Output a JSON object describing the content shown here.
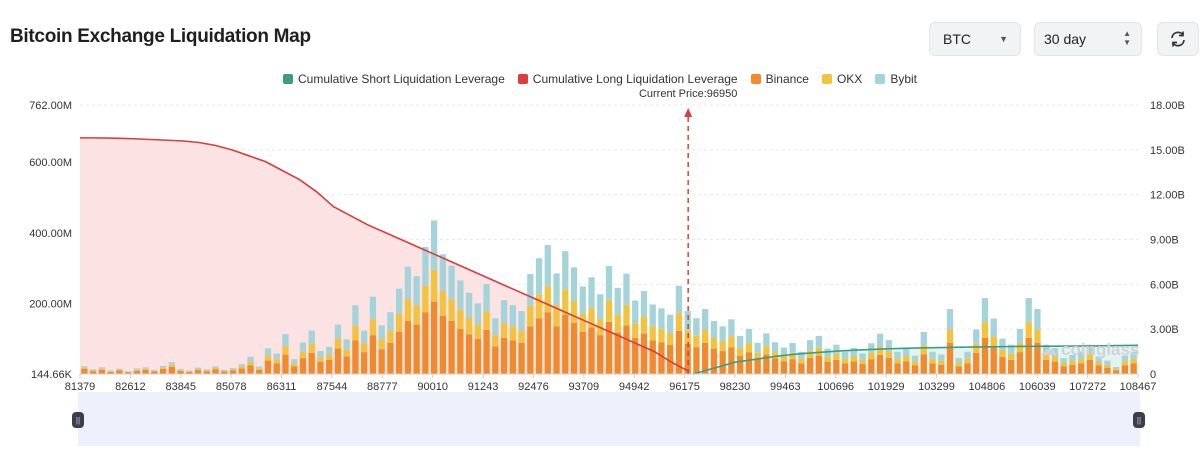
{
  "page": {
    "title": "Bitcoin Exchange Liquidation Map",
    "symbol_select": "BTC",
    "range_select": "30 day",
    "refresh_icon": "refresh-icon",
    "watermark": "coinglass"
  },
  "colors": {
    "short": "#3a9e85",
    "long": "#dc3c3c",
    "binance": "#f08a2c",
    "okx": "#f3c23f",
    "bybit": "#a4d4da",
    "long_fill": "#fbe3e3",
    "short_fill": "#e3f3ee"
  },
  "chart_data": {
    "type": "bar",
    "current_price_label": "Current Price:96950",
    "current_price": 96950,
    "legend": [
      "Cumulative Short Liquidation Leverage",
      "Cumulative Long Liquidation Leverage",
      "Binance",
      "OKX",
      "Bybit"
    ],
    "x_ticks": [
      "81379",
      "82612",
      "83845",
      "85078",
      "86311",
      "87544",
      "88777",
      "90010",
      "91243",
      "92476",
      "93709",
      "94942",
      "96175",
      "98230",
      "99463",
      "100696",
      "101929",
      "103299",
      "104806",
      "106039",
      "107272",
      "108467"
    ],
    "y_left_ticks": [
      "144.66K",
      "200.00M",
      "400.00M",
      "600.00M",
      "762.00M"
    ],
    "y_right_ticks": [
      "0",
      "3.00B",
      "6.00B",
      "9.00B",
      "12.00B",
      "15.00B",
      "18.00B"
    ],
    "ylim_left": [
      0,
      762
    ],
    "ylim_right": [
      0,
      18
    ],
    "bar_unit": "M",
    "x_range": [
      81379,
      108467
    ],
    "series_bars": [
      {
        "name": "Binance",
        "values": [
          15,
          8,
          12,
          6,
          10,
          5,
          9,
          12,
          7,
          14,
          20,
          9,
          6,
          11,
          8,
          13,
          7,
          10,
          16,
          25,
          12,
          38,
          30,
          55,
          22,
          45,
          60,
          35,
          40,
          72,
          50,
          95,
          62,
          110,
          70,
          88,
          120,
          150,
          140,
          175,
          205,
          165,
          150,
          128,
          112,
          100,
          125,
          78,
          102,
          95,
          88,
          135,
          158,
          175,
          135,
          168,
          145,
          120,
          132,
          110,
          148,
          118,
          138,
          102,
          115,
          95,
          90,
          82,
          122,
          86,
          76,
          88,
          72,
          65,
          75,
          52,
          62,
          42,
          55,
          44,
          36,
          42,
          30,
          46,
          52,
          35,
          40,
          30,
          36,
          28,
          42,
          54,
          46,
          30,
          36,
          25,
          56,
          30,
          26,
          88,
          22,
          30,
          60,
          102,
          75,
          48,
          40,
          62,
          102,
          88,
          40,
          35,
          22,
          26,
          30,
          40,
          24,
          18,
          10,
          25,
          30
        ]
      },
      {
        "name": "OKX",
        "values": [
          3,
          2,
          3,
          2,
          2,
          1,
          3,
          3,
          2,
          4,
          6,
          2,
          2,
          3,
          2,
          4,
          2,
          3,
          5,
          10,
          4,
          15,
          12,
          24,
          8,
          18,
          25,
          12,
          15,
          28,
          20,
          42,
          25,
          45,
          28,
          35,
          50,
          62,
          55,
          75,
          90,
          70,
          62,
          55,
          48,
          40,
          52,
          32,
          42,
          40,
          35,
          58,
          68,
          75,
          60,
          72,
          62,
          50,
          56,
          46,
          62,
          50,
          58,
          42,
          48,
          40,
          38,
          34,
          50,
          36,
          32,
          38,
          30,
          28,
          32,
          22,
          26,
          18,
          24,
          18,
          15,
          18,
          13,
          20,
          22,
          15,
          17,
          13,
          15,
          12,
          18,
          24,
          20,
          13,
          15,
          11,
          25,
          13,
          12,
          38,
          9,
          13,
          26,
          45,
          32,
          20,
          17,
          26,
          45,
          38,
          17,
          15,
          9,
          11,
          13,
          17,
          10,
          8,
          4,
          11,
          13
        ]
      },
      {
        "name": "Bybit",
        "values": [
          4,
          3,
          4,
          2,
          3,
          2,
          4,
          4,
          3,
          5,
          8,
          3,
          2,
          4,
          3,
          5,
          3,
          4,
          7,
          14,
          5,
          20,
          16,
          34,
          12,
          26,
          38,
          18,
          22,
          40,
          28,
          58,
          36,
          64,
          40,
          52,
          72,
          92,
          82,
          110,
          140,
          104,
          95,
          82,
          70,
          60,
          78,
          48,
          65,
          60,
          55,
          90,
          102,
          115,
          90,
          108,
          95,
          78,
          86,
          70,
          96,
          76,
          88,
          64,
          72,
          62,
          58,
          52,
          78,
          56,
          50,
          58,
          48,
          42,
          48,
          34,
          40,
          28,
          36,
          28,
          24,
          28,
          20,
          30,
          34,
          22,
          26,
          20,
          23,
          18,
          27,
          36,
          30,
          20,
          24,
          16,
          38,
          20,
          17,
          58,
          14,
          20,
          40,
          68,
          50,
          32,
          26,
          40,
          68,
          58,
          26,
          23,
          14,
          17,
          20,
          26,
          16,
          12,
          6,
          16,
          20
        ]
      }
    ],
    "long_cumulative_b": [
      15.8,
      15.8,
      15.78,
      15.75,
      15.7,
      15.65,
      15.6,
      15.5,
      15.3,
      15.0,
      14.6,
      14.2,
      13.6,
      13.0,
      12.2,
      11.2,
      10.6,
      10.0,
      9.5,
      9.0,
      8.5,
      8.0,
      7.5,
      7.0,
      6.5,
      6.0,
      5.5,
      5.0,
      4.5,
      4.0,
      3.5,
      3.0,
      2.5,
      2.0,
      1.5,
      0.8,
      0.2
    ],
    "short_cumulative_b": [
      0,
      0.4,
      0.8,
      1.0,
      1.2,
      1.35,
      1.45,
      1.55,
      1.62,
      1.68,
      1.72,
      1.75,
      1.78,
      1.8,
      1.82,
      1.84,
      1.85,
      1.86,
      1.87,
      1.88,
      1.9,
      1.92
    ]
  }
}
